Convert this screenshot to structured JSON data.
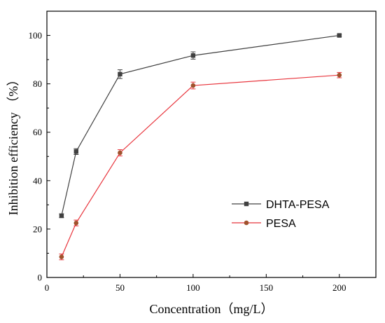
{
  "chart_data": {
    "type": "line",
    "xlabel": "Concentration（mg/L）",
    "ylabel": "Inhibition efficiency （%）",
    "xlim": [
      0,
      225
    ],
    "ylim": [
      0,
      110
    ],
    "xticks": [
      0,
      50,
      100,
      150,
      200
    ],
    "yticks": [
      0,
      20,
      40,
      60,
      80,
      100
    ],
    "grid": false,
    "legend_position": "right",
    "series": [
      {
        "name": "DHTA-PESA",
        "color": "#404040",
        "marker": "square",
        "x": [
          10,
          20,
          50,
          100,
          200
        ],
        "y": [
          25.5,
          52.0,
          84.0,
          91.7,
          100.0
        ],
        "error": [
          0.8,
          1.2,
          1.8,
          1.5,
          0.4
        ]
      },
      {
        "name": "PESA",
        "color": "#e8343c",
        "marker_color": "#a0522d",
        "marker": "circle",
        "x": [
          10,
          20,
          50,
          100,
          200
        ],
        "y": [
          8.5,
          22.5,
          51.5,
          79.3,
          83.6
        ],
        "error": [
          1.2,
          1.2,
          1.3,
          1.4,
          1.1
        ]
      }
    ]
  }
}
